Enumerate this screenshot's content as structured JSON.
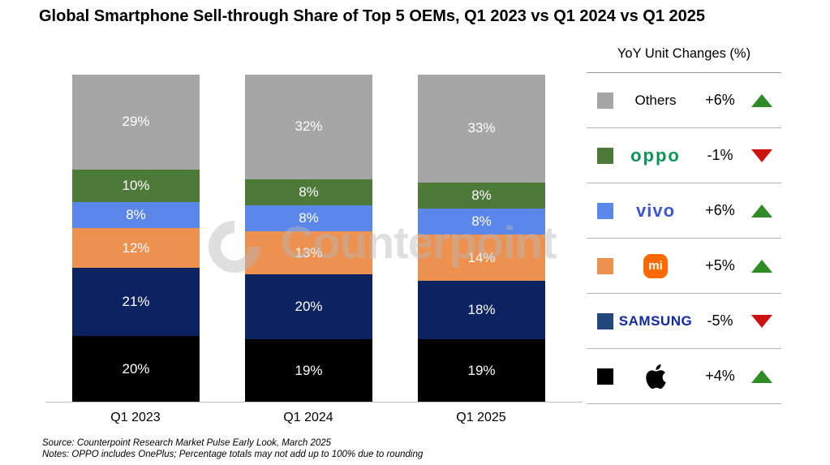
{
  "title": "Global Smartphone Sell-through Share of Top 5 OEMs, Q1 2023 vs Q1 2024 vs Q1 2025",
  "chart_data": {
    "type": "bar",
    "stacked": true,
    "orientation": "vertical",
    "segment_order": "top-to-bottom",
    "categories": [
      "Q1 2023",
      "Q1 2024",
      "Q1 2025"
    ],
    "series": [
      {
        "name": "Others",
        "color": "#a6a6a6",
        "values": [
          29,
          32,
          33
        ]
      },
      {
        "name": "OPPO",
        "color": "#4d7a38",
        "values": [
          10,
          8,
          8
        ]
      },
      {
        "name": "vivo",
        "color": "#5b87ea",
        "values": [
          8,
          8,
          8
        ]
      },
      {
        "name": "Xiaomi",
        "color": "#ed9150",
        "values": [
          12,
          13,
          14
        ]
      },
      {
        "name": "Samsung",
        "color": "#0d2361",
        "values": [
          21,
          20,
          18
        ]
      },
      {
        "name": "Apple",
        "color": "#000000",
        "values": [
          20,
          19,
          19
        ]
      }
    ],
    "value_suffix": "%",
    "ylim": [
      0,
      100
    ],
    "grid": false,
    "legend_position": "right"
  },
  "legend": {
    "title": "YoY Unit Changes (%)",
    "up_color": "#2e8b25",
    "down_color": "#cc1111",
    "rows": [
      {
        "name": "Others",
        "logo": "text",
        "logo_text": "Others",
        "swatch": "#a6a6a6",
        "change": "+6%",
        "direction": "up"
      },
      {
        "name": "OPPO",
        "logo": "oppo",
        "logo_text": "oppo",
        "swatch": "#4d7a38",
        "change": "-1%",
        "direction": "down"
      },
      {
        "name": "vivo",
        "logo": "vivo",
        "logo_text": "vivo",
        "swatch": "#5b87ea",
        "change": "+6%",
        "direction": "up"
      },
      {
        "name": "Xiaomi",
        "logo": "mi",
        "logo_text": "mi",
        "swatch": "#ed9150",
        "change": "+5%",
        "direction": "up"
      },
      {
        "name": "Samsung",
        "logo": "samsung",
        "logo_text": "SAMSUNG",
        "swatch": "#24477e",
        "change": "-5%",
        "direction": "down"
      },
      {
        "name": "Apple",
        "logo": "apple",
        "logo_text": "",
        "swatch": "#000000",
        "change": "+4%",
        "direction": "up"
      }
    ]
  },
  "brand_colors": {
    "oppo": "#0e9457",
    "vivo": "#3e56d4",
    "mi_bg": "#ff6900",
    "mi_text": "#ffffff",
    "samsung": "#1428a0",
    "apple": "#000000"
  },
  "watermark": {
    "text": "Counterpoint"
  },
  "footer": {
    "source": "Source: Counterpoint Research Market Pulse Early Look, March 2025",
    "notes": "Notes: OPPO includes OnePlus; Percentage totals may not add up to 100% due to rounding"
  }
}
